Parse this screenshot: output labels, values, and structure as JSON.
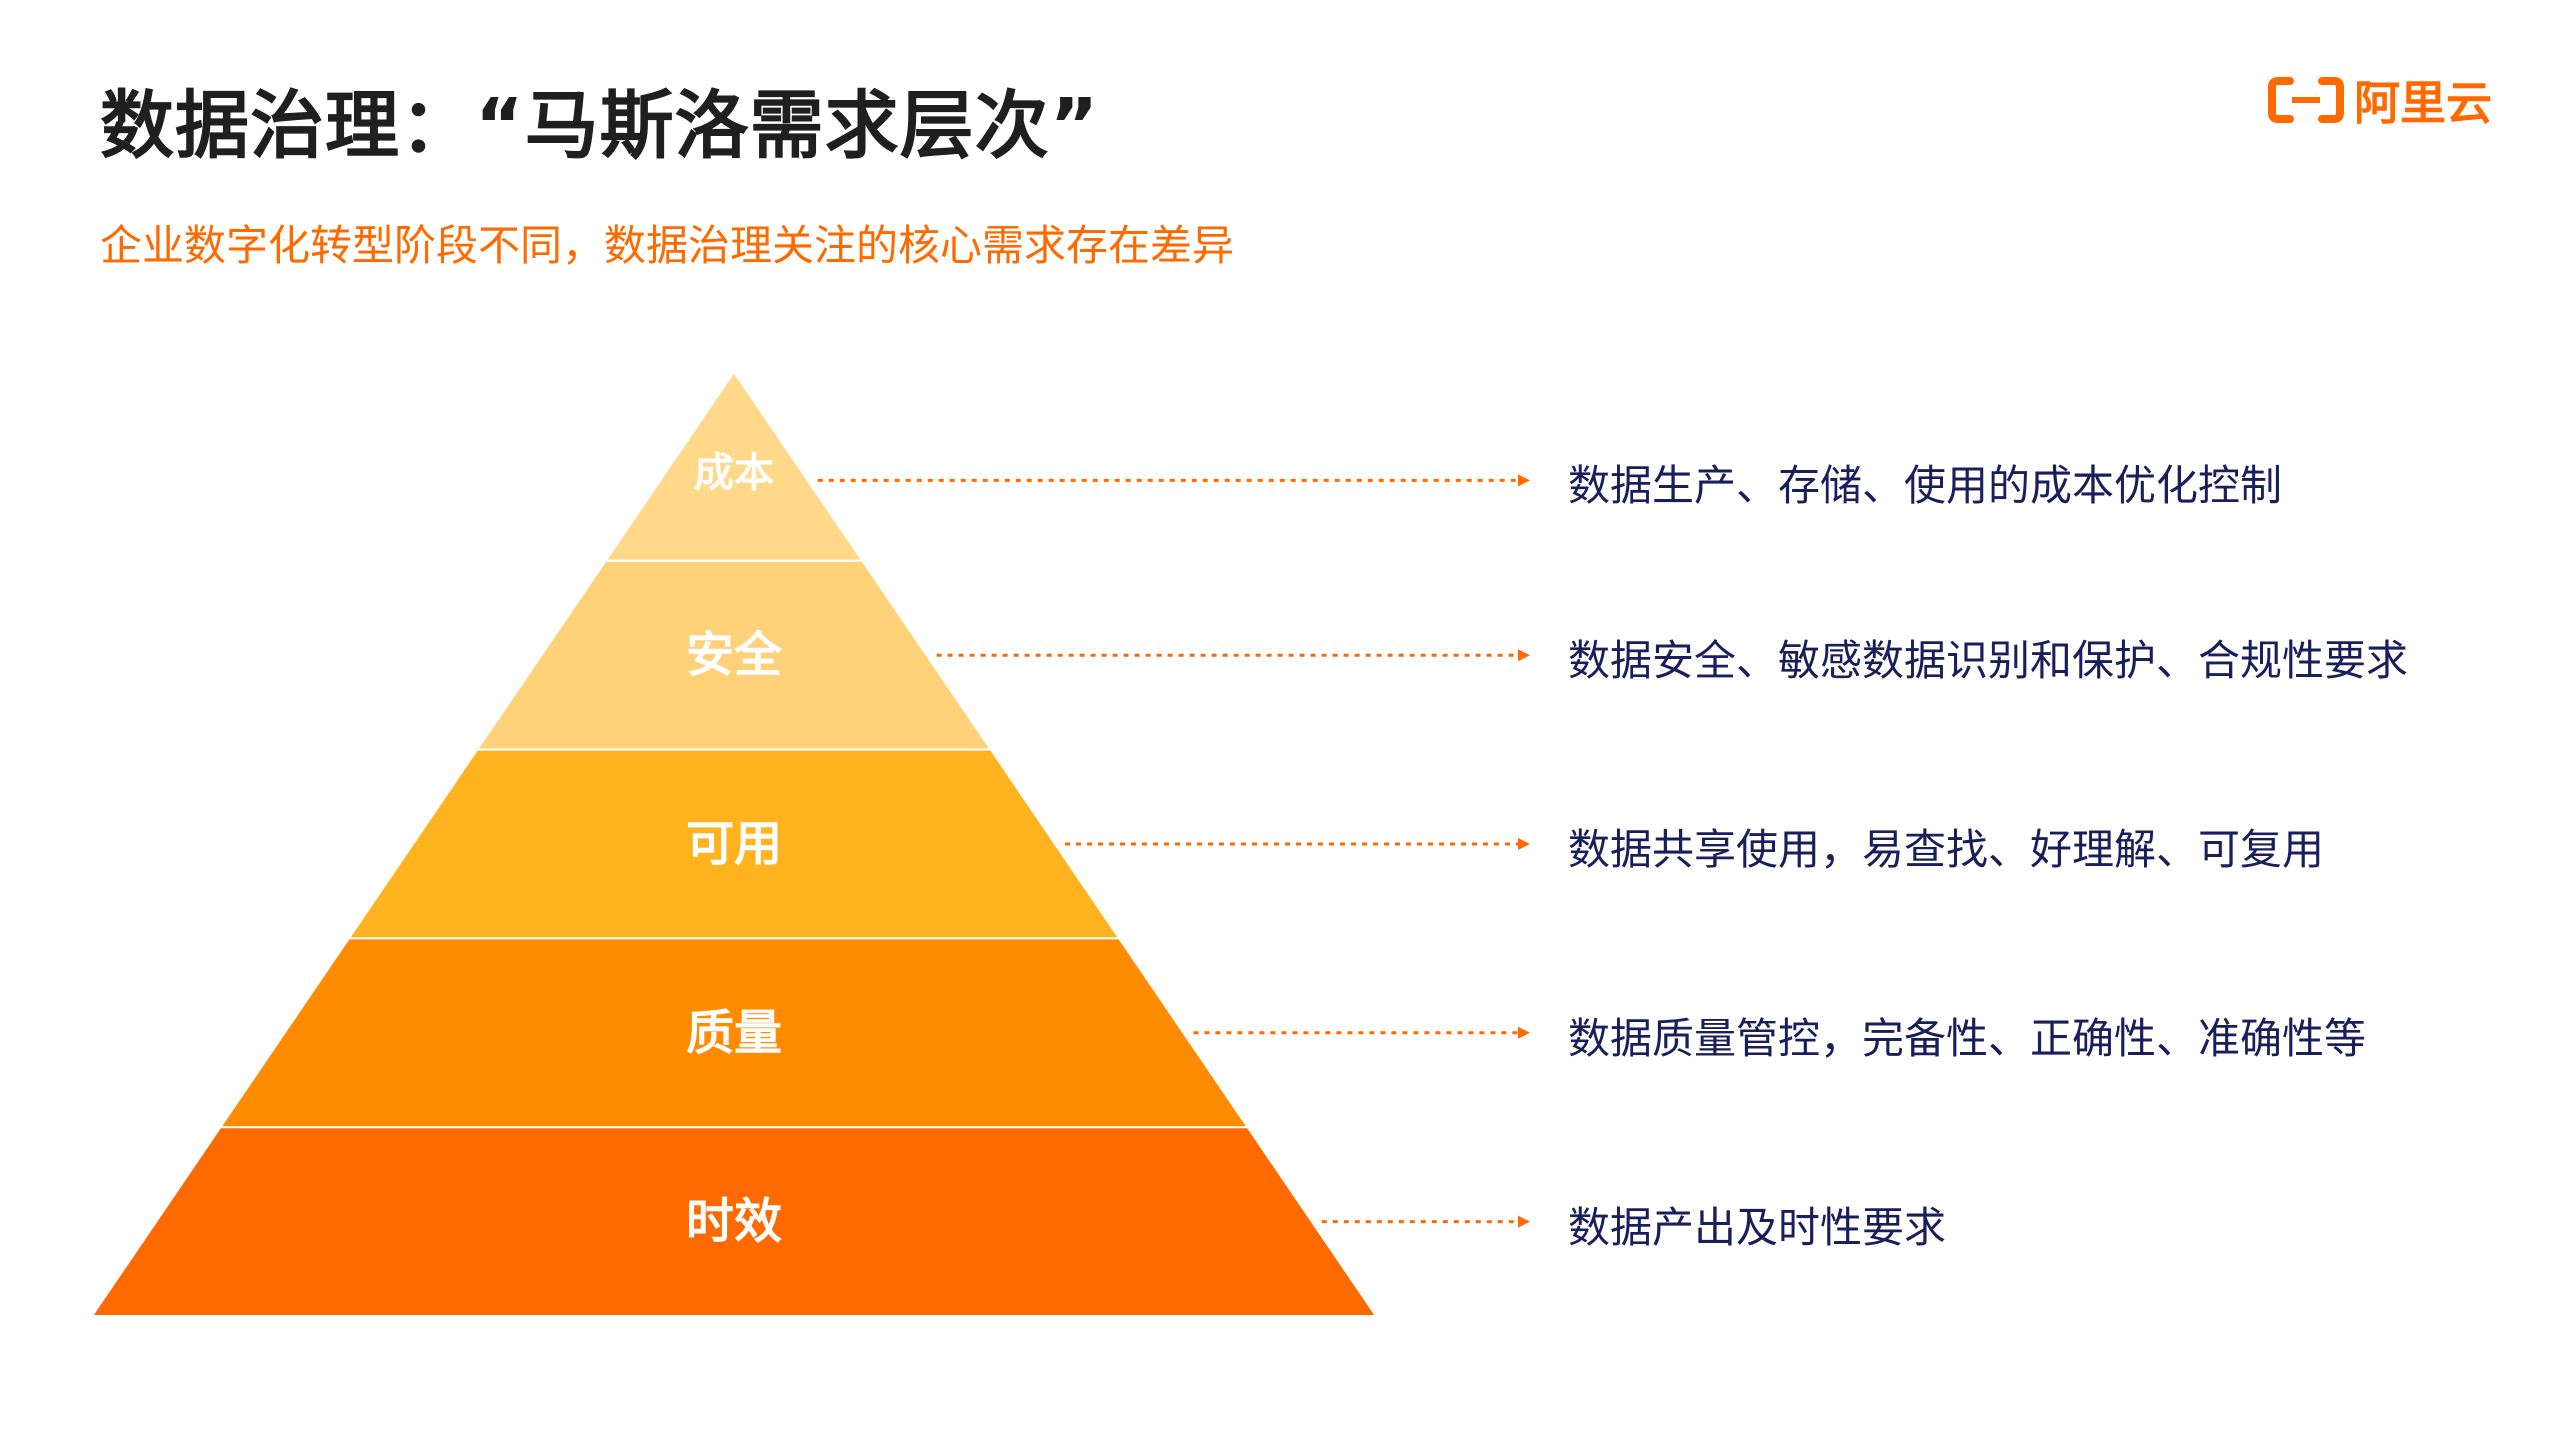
{
  "header": {
    "title": "数据治理：“马斯洛需求层次”",
    "subtitle": "企业数字化转型阶段不同，数据治理关注的核心需求存在差异"
  },
  "logo": {
    "text": "阿里云",
    "color": "#ff6a00"
  },
  "pyramid": {
    "levels": [
      {
        "label": "成本",
        "description": "数据生产、存储、使用的成本优化控制",
        "color": "#ffd88a"
      },
      {
        "label": "安全",
        "description": "数据安全、敏感数据识别和保护、合规性要求",
        "color": "#ffd27a"
      },
      {
        "label": "可用",
        "description": "数据共享使用，易查找、好理解、可复用",
        "color": "#ffb31f"
      },
      {
        "label": "质量",
        "description": "数据质量管控，完备性、正确性、准确性等",
        "color": "#ff8c00"
      },
      {
        "label": "时效",
        "description": "数据产出及时性要求",
        "color": "#ff6a00"
      }
    ],
    "connector_color": "#ff6a00",
    "label_color": "#ffffff",
    "description_color": "#1a1f5c"
  }
}
